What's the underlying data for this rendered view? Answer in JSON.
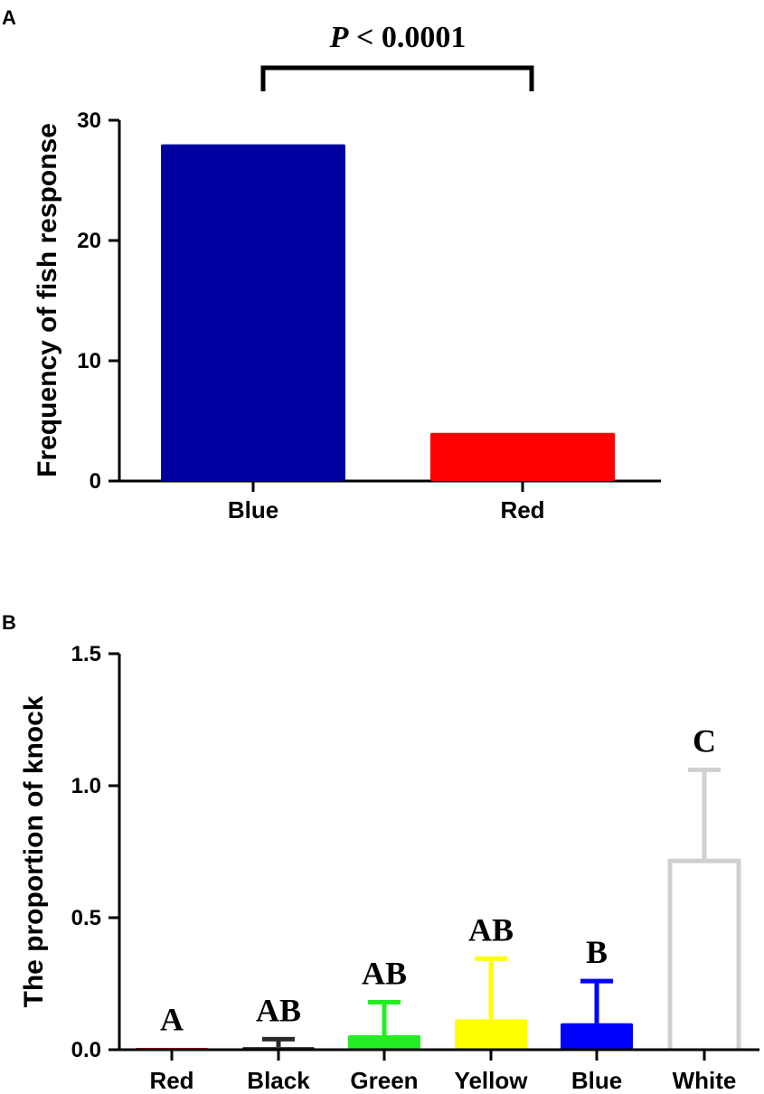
{
  "panels": {
    "A": {
      "label": "A"
    },
    "B": {
      "label": "B"
    }
  },
  "significance": {
    "p_symbol": "P",
    "p_rest": " < 0.0001"
  },
  "chart_data": [
    {
      "panel": "A",
      "type": "bar",
      "title": "",
      "xlabel": "",
      "ylabel": "Frequency of fish response",
      "categories": [
        "Blue",
        "Red"
      ],
      "values": [
        28,
        4
      ],
      "colors": [
        "#0000A0",
        "#FF0000"
      ],
      "ylim": [
        0,
        30
      ],
      "yticks": [
        0,
        10,
        20,
        30
      ],
      "ytick_labels": [
        "0",
        "10",
        "20",
        "30"
      ],
      "grid": false,
      "annotations": [
        "P < 0.0001"
      ]
    },
    {
      "panel": "B",
      "type": "bar",
      "title": "",
      "xlabel": "",
      "ylabel": "The proportion of knock",
      "categories": [
        "Red",
        "Black",
        "Green",
        "Yellow",
        "Blue",
        "White"
      ],
      "values": [
        0.005,
        0.01,
        0.055,
        0.115,
        0.1,
        0.715
      ],
      "error_upper": [
        0.005,
        0.04,
        0.18,
        0.345,
        0.26,
        1.06
      ],
      "letters": [
        "A",
        "AB",
        "AB",
        "AB",
        "B",
        "C"
      ],
      "colors": [
        "#FF0000",
        "#2B2B2B",
        "#22EE22",
        "#FFFF00",
        "#0000FF",
        "#D0D0D0"
      ],
      "hollow": [
        false,
        false,
        false,
        false,
        false,
        true
      ],
      "ylim": [
        0,
        1.5
      ],
      "yticks": [
        0,
        0.5,
        1.0,
        1.5
      ],
      "ytick_labels": [
        "0.0",
        "0.5",
        "1.0",
        "1.5"
      ],
      "grid": false
    }
  ]
}
